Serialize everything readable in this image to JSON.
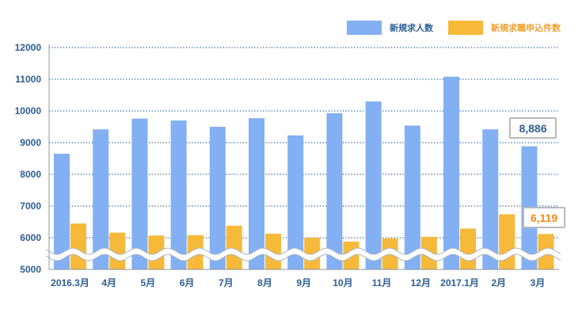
{
  "chart_data": {
    "type": "bar",
    "categories": [
      "2016.3月",
      "4月",
      "5月",
      "6月",
      "7月",
      "8月",
      "9月",
      "10月",
      "11月",
      "12月",
      "2017.1月",
      "2月",
      "3月"
    ],
    "series": [
      {
        "name": "新規求人数",
        "values": [
          8650,
          9420,
          9760,
          9700,
          9500,
          9770,
          9230,
          9930,
          10300,
          9540,
          11080,
          9420,
          8886
        ]
      },
      {
        "name": "新規求職申込件数",
        "values": [
          6450,
          6160,
          6070,
          6080,
          6380,
          6130,
          6000,
          5880,
          5980,
          6030,
          6290,
          6740,
          6119
        ]
      }
    ],
    "yticks": [
      5000,
      6000,
      7000,
      8000,
      9000,
      10000,
      11000,
      12000
    ],
    "ylim": [
      5000,
      12000
    ],
    "axis_break": true,
    "grid": "dotted",
    "legend_position": "top-right",
    "annotations": [
      {
        "series": "新規求人数",
        "category": "3月",
        "text": "8,886"
      },
      {
        "series": "新規求職申込件数",
        "category": "3月",
        "text": "6,119"
      }
    ]
  },
  "colors": {
    "series_1": "#82b0f3",
    "series_2": "#f7b93a",
    "axis_text": "#2c5f94",
    "grid": "#1f5a92",
    "callout_1_text": "#2c5f94",
    "callout_2_text": "#f08a1c",
    "legend_1_text": "#2c5f94",
    "legend_2_text": "#f0a030"
  }
}
